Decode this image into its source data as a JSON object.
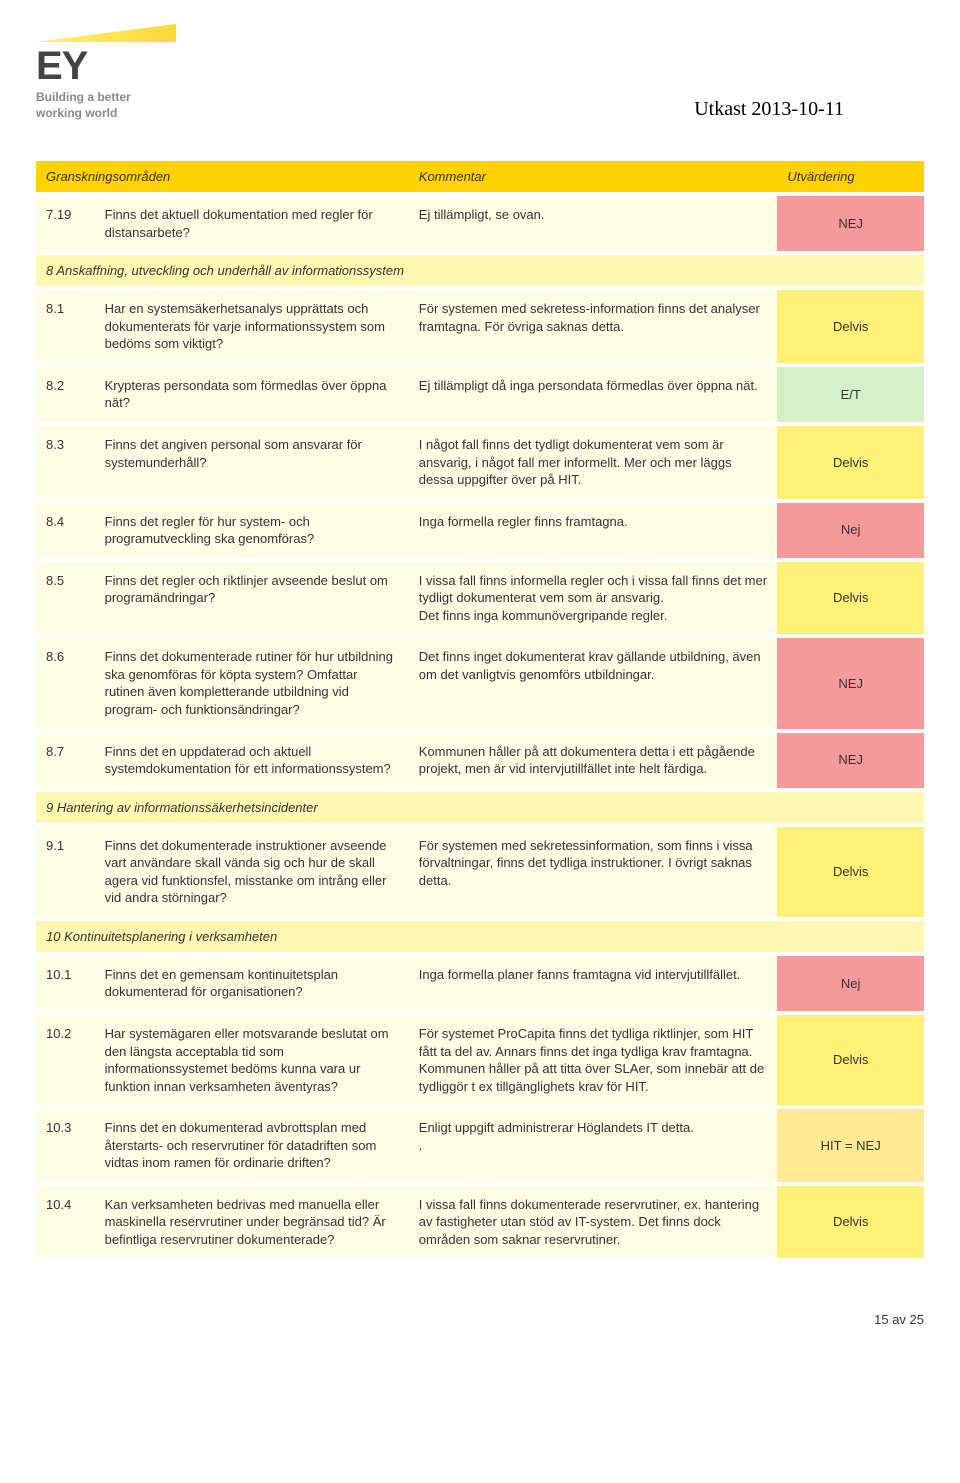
{
  "header": {
    "logo_text": "EY",
    "tagline_line1": "Building a better",
    "tagline_line2": "working world",
    "draft_date": "Utkast 2013-10-11"
  },
  "colors": {
    "header_bg": "#ffd200",
    "section_bg": "#fff7b2",
    "row_bg": "#fffde4",
    "eval_nej": "#f59a9a",
    "eval_delvis": "#fff176",
    "eval_et": "#d4f0c8",
    "eval_hit": "#ffe995",
    "beam_gradient": [
      "#fff176",
      "#fdd835"
    ]
  },
  "table": {
    "type": "table",
    "columns": [
      "Granskningsområden",
      "Kommentar",
      "Utvärdering"
    ],
    "rows": [
      {
        "kind": "row",
        "num": "7.19",
        "q": "Finns det aktuell dokumentation med regler för distansarbete?",
        "c": "Ej tillämpligt, se ovan.",
        "eval": "NEJ",
        "eval_class": "eval-nej"
      },
      {
        "kind": "section",
        "title": "8 Anskaffning, utveckling och underhåll av informationssystem"
      },
      {
        "kind": "row",
        "num": "8.1",
        "q": "Har en systemsäkerhetsanalys upprättats och dokumenterats för varje informationssystem som bedöms som viktigt?",
        "c": "För systemen med sekretess-information finns det analyser framtagna. För övriga saknas detta.",
        "eval": "Delvis",
        "eval_class": "eval-delvis"
      },
      {
        "kind": "row",
        "num": "8.2",
        "q": "Krypteras persondata som förmedlas över öppna nät?",
        "c": "Ej tillämpligt då inga persondata förmedlas över öppna nät.",
        "eval": "E/T",
        "eval_class": "eval-et"
      },
      {
        "kind": "row",
        "num": "8.3",
        "q": "Finns det angiven personal som ansvarar för systemunderhåll?",
        "c": "I något fall finns det tydligt dokumenterat vem som är ansvarig, i något fall mer informellt. Mer och mer läggs dessa uppgifter över på HIT.",
        "eval": "Delvis",
        "eval_class": "eval-delvis"
      },
      {
        "kind": "row",
        "num": "8.4",
        "q": "Finns det regler för hur system- och programutveckling ska genomföras?",
        "c": "Inga formella regler finns framtagna.",
        "eval": "Nej",
        "eval_class": "eval-nej"
      },
      {
        "kind": "row",
        "num": "8.5",
        "q": "Finns det regler och riktlinjer avseende beslut om programändringar?",
        "c": "I vissa fall finns informella regler och i vissa fall finns det mer tydligt dokumenterat vem som är ansvarig.\nDet finns inga kommunövergripande regler.",
        "eval": "Delvis",
        "eval_class": "eval-delvis"
      },
      {
        "kind": "row",
        "num": "8.6",
        "q": "Finns det dokumenterade rutiner för hur utbildning ska genomföras för köpta system? Omfattar rutinen även kompletterande utbildning vid program- och funktionsändringar?",
        "c": "Det finns inget dokumenterat krav gällande utbildning, även om det vanligtvis genomförs utbildningar.",
        "eval": "NEJ",
        "eval_class": "eval-nej"
      },
      {
        "kind": "row",
        "num": "8.7",
        "q": "Finns det en uppdaterad och aktuell systemdokumentation för ett informationssystem?",
        "c": "Kommunen håller på att dokumentera detta i ett pågående projekt, men är vid intervjutillfället inte helt färdiga.",
        "eval": "NEJ",
        "eval_class": "eval-nej"
      },
      {
        "kind": "section",
        "title": "9 Hantering av informationssäkerhetsincidenter"
      },
      {
        "kind": "row",
        "num": "9.1",
        "q": "Finns det dokumenterade instruktioner avseende vart användare skall vända sig och hur de skall agera vid funktionsfel, misstanke om intrång eller vid andra störningar?",
        "c": "För systemen med sekretessinformation, som finns i vissa förvaltningar, finns det tydliga instruktioner. I övrigt saknas detta.",
        "eval": "Delvis",
        "eval_class": "eval-delvis"
      },
      {
        "kind": "section",
        "title": "10 Kontinuitetsplanering i verksamheten"
      },
      {
        "kind": "row",
        "num": "10.1",
        "q": "Finns det en gemensam kontinuitetsplan dokumenterad för organisationen?",
        "c": "Inga formella planer fanns framtagna vid intervjutillfället.",
        "eval": "Nej",
        "eval_class": "eval-nej"
      },
      {
        "kind": "row",
        "num": "10.2",
        "q": "Har systemägaren eller motsvarande beslutat om den längsta acceptabla tid som informationssystemet bedöms kunna vara ur funktion innan verksamheten äventyras?",
        "c": "För systemet ProCapita finns det tydliga riktlinjer, som HIT fått ta del av. Annars finns det inga tydliga krav framtagna. Kommunen håller på att titta över SLAer, som innebär att de tydliggör t ex tillgänglighets krav för HIT.",
        "eval": "Delvis",
        "eval_class": "eval-delvis"
      },
      {
        "kind": "row",
        "num": "10.3",
        "q": "Finns det en dokumenterad avbrottsplan med återstarts- och reservrutiner för datadriften som vidtas inom ramen för ordinarie driften?",
        "c": "Enligt uppgift administrerar Höglandets IT detta.\n.",
        "eval": "HIT = NEJ",
        "eval_class": "eval-hit"
      },
      {
        "kind": "row",
        "num": "10.4",
        "q": "Kan verksamheten bedrivas med manuella eller maskinella reservrutiner under begränsad tid? Är befintliga reservrutiner dokumenterade?",
        "c": "I vissa fall finns dokumenterade reservrutiner, ex. hantering av fastigheter utan stöd av IT-system. Det finns dock områden som saknar reservrutiner.",
        "eval": "Delvis",
        "eval_class": "eval-delvis"
      }
    ]
  },
  "footer": {
    "page_label": "15 av 25"
  }
}
